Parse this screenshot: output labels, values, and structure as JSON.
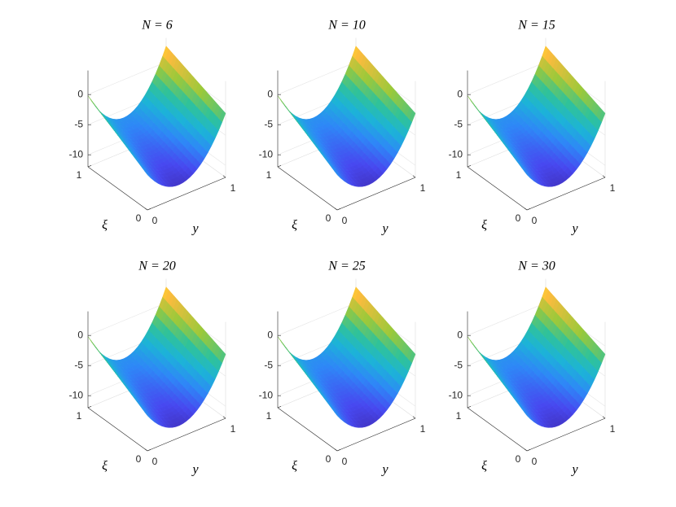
{
  "chart_data": [
    {
      "type": "surface",
      "title": "N = 6",
      "xlabel": "y",
      "ylabel": "ξ",
      "xlim": [
        0,
        1
      ],
      "ylim": [
        0,
        1
      ],
      "zlim": [
        -12,
        4
      ],
      "xticks": [
        0,
        1
      ],
      "yticks": [
        0,
        1
      ],
      "zticks": [
        0,
        -5,
        -10
      ]
    },
    {
      "type": "surface",
      "title": "N = 10",
      "xlabel": "y",
      "ylabel": "ξ",
      "xlim": [
        0,
        1
      ],
      "ylim": [
        0,
        1
      ],
      "zlim": [
        -12,
        4
      ],
      "xticks": [
        0,
        1
      ],
      "yticks": [
        0,
        1
      ],
      "zticks": [
        0,
        -5,
        -10
      ]
    },
    {
      "type": "surface",
      "title": "N = 15",
      "xlabel": "y",
      "ylabel": "ξ",
      "xlim": [
        0,
        1
      ],
      "ylim": [
        0,
        1
      ],
      "zlim": [
        -12,
        4
      ],
      "xticks": [
        0,
        1
      ],
      "yticks": [
        0,
        1
      ],
      "zticks": [
        0,
        -5,
        -10
      ]
    },
    {
      "type": "surface",
      "title": "N = 20",
      "xlabel": "y",
      "ylabel": "ξ",
      "xlim": [
        0,
        1
      ],
      "ylim": [
        0,
        1
      ],
      "zlim": [
        -12,
        4
      ],
      "xticks": [
        0,
        1
      ],
      "yticks": [
        0,
        1
      ],
      "zticks": [
        0,
        -5,
        -10
      ]
    },
    {
      "type": "surface",
      "title": "N = 25",
      "xlabel": "y",
      "ylabel": "ξ",
      "xlim": [
        0,
        1
      ],
      "ylim": [
        0,
        1
      ],
      "zlim": [
        -12,
        4
      ],
      "xticks": [
        0,
        1
      ],
      "yticks": [
        0,
        1
      ],
      "zticks": [
        0,
        -5,
        -10
      ]
    },
    {
      "type": "surface",
      "title": "N = 30",
      "xlabel": "y",
      "ylabel": "ξ",
      "xlim": [
        0,
        1
      ],
      "ylim": [
        0,
        1
      ],
      "zlim": [
        -12,
        4
      ],
      "xticks": [
        0,
        1
      ],
      "yticks": [
        0,
        1
      ],
      "zticks": [
        0,
        -5,
        -10
      ]
    }
  ]
}
